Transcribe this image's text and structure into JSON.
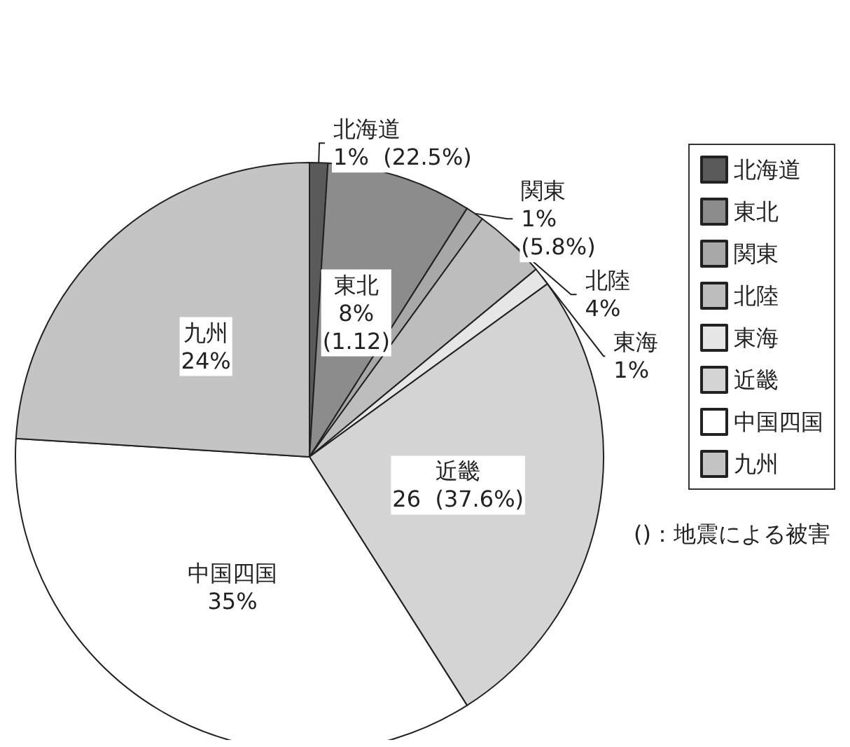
{
  "chart_data": {
    "type": "pie",
    "categories": [
      "北海道",
      "東北",
      "関東",
      "北陸",
      "東海",
      "近畿",
      "中国四国",
      "九州"
    ],
    "values": [
      1,
      8,
      1,
      4,
      1,
      26,
      35,
      24
    ],
    "colors": [
      "#5a5a5a",
      "#8c8c8c",
      "#a8a8a8",
      "#bdbdbd",
      "#e6e6e6",
      "#d4d4d4",
      "#ffffff",
      "#c4c4c4"
    ],
    "value_labels": [
      "1%  (22.5%)",
      "8%\n(1.12)",
      "1%\n(5.8%)",
      "4%",
      "1%",
      "26  (37.6%)",
      "35%",
      "24%"
    ],
    "legend": "right",
    "annotations": [
      "()：地震による被害"
    ]
  }
}
